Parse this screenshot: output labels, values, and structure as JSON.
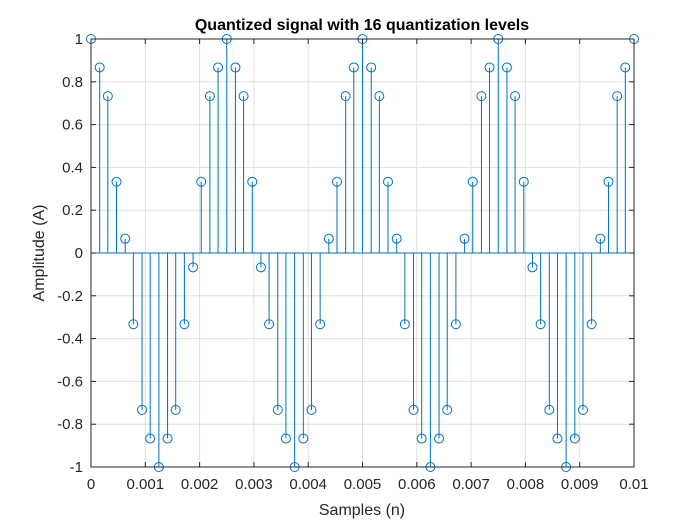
{
  "chart_data": {
    "type": "stem",
    "title": "Quantized signal with 16 quantization levels",
    "xlabel": "Samples (n)",
    "ylabel": "Amplitude (A)",
    "xlim": [
      0,
      0.01
    ],
    "ylim": [
      -1,
      1
    ],
    "x_ticks": [
      "0",
      "0.001",
      "0.002",
      "0.003",
      "0.004",
      "0.005",
      "0.006",
      "0.007",
      "0.008",
      "0.009",
      "0.01"
    ],
    "x_tick_values": [
      0,
      0.001,
      0.002,
      0.003,
      0.004,
      0.005,
      0.006,
      0.007,
      0.008,
      0.009,
      0.01
    ],
    "y_ticks": [
      "-1",
      "-0.8",
      "-0.6",
      "-0.4",
      "-0.2",
      "0",
      "0.2",
      "0.4",
      "0.6",
      "0.8",
      "1"
    ],
    "y_tick_values": [
      -1,
      -0.8,
      -0.6,
      -0.4,
      -0.2,
      0,
      0.2,
      0.4,
      0.6,
      0.8,
      1
    ],
    "grid": true,
    "box": true,
    "series": [
      {
        "color": "#0072bd",
        "marker": "circle-open",
        "x": [
          0.0,
          0.00016,
          0.00031,
          0.00047,
          0.00063,
          0.00078,
          0.00094,
          0.00109,
          0.00125,
          0.00141,
          0.00156,
          0.00172,
          0.00188,
          0.00203,
          0.00219,
          0.00234,
          0.0025,
          0.00266,
          0.00281,
          0.00297,
          0.00313,
          0.00328,
          0.00344,
          0.00359,
          0.00375,
          0.00391,
          0.00406,
          0.00422,
          0.00438,
          0.00453,
          0.00469,
          0.00484,
          0.005,
          0.00516,
          0.00531,
          0.00547,
          0.00563,
          0.00578,
          0.00594,
          0.00609,
          0.00625,
          0.00641,
          0.00656,
          0.00672,
          0.00688,
          0.00703,
          0.00719,
          0.00734,
          0.0075,
          0.00766,
          0.00781,
          0.00797,
          0.00813,
          0.00828,
          0.00844,
          0.00859,
          0.00875,
          0.00891,
          0.00906,
          0.00922,
          0.00938,
          0.00953,
          0.00969,
          0.00984,
          0.01
        ],
        "y": [
          1,
          0.867,
          0.733,
          0.333,
          0.067,
          -0.333,
          -0.733,
          -0.867,
          -1,
          -0.867,
          -0.733,
          -0.333,
          -0.067,
          0.333,
          0.733,
          0.867,
          1,
          0.867,
          0.733,
          0.333,
          -0.067,
          -0.333,
          -0.733,
          -0.867,
          -1,
          -0.867,
          -0.733,
          -0.333,
          0.067,
          0.333,
          0.733,
          0.867,
          1,
          0.867,
          0.733,
          0.333,
          0.067,
          -0.333,
          -0.733,
          -0.867,
          -1,
          -0.867,
          -0.733,
          -0.333,
          0.067,
          0.333,
          0.733,
          0.867,
          1,
          0.867,
          0.733,
          0.333,
          -0.067,
          -0.333,
          -0.733,
          -0.867,
          -1,
          -0.867,
          -0.733,
          -0.333,
          0.067,
          0.333,
          0.733,
          0.867,
          1
        ]
      }
    ]
  }
}
